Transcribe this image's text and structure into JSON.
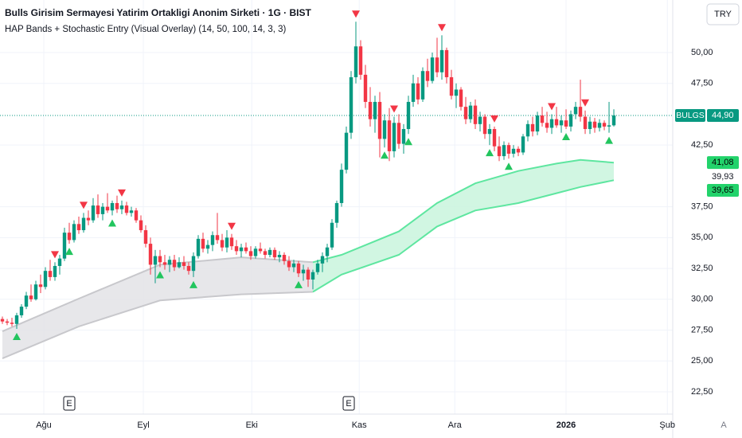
{
  "chart_data": {
    "type": "candlestick",
    "title": "Bulls Girisim Sermayesi Yatirim Ortakligi Anonim Sirketi · 1G · BIST",
    "subtitle": "HAP Bands + Stochastic Entry (Visual Overlay) (14, 50, 100, 14, 3, 3)",
    "currency": "TRY",
    "up_color": "#089981",
    "down_color": "#f23645",
    "ohlc": [
      [
        28.4,
        28.6,
        28.0,
        28.2
      ],
      [
        28.2,
        28.4,
        27.9,
        28.1
      ],
      [
        28.1,
        28.5,
        27.8,
        28.0
      ],
      [
        28.0,
        28.9,
        27.6,
        28.7
      ],
      [
        28.7,
        29.6,
        28.5,
        29.4
      ],
      [
        29.4,
        30.6,
        29.2,
        30.3
      ],
      [
        30.3,
        31.2,
        29.8,
        30.0
      ],
      [
        30.0,
        31.5,
        29.9,
        31.2
      ],
      [
        31.2,
        32.0,
        30.5,
        31.0
      ],
      [
        31.0,
        32.6,
        30.8,
        32.3
      ],
      [
        32.3,
        33.2,
        31.5,
        31.8
      ],
      [
        31.8,
        33.0,
        31.5,
        32.7
      ],
      [
        32.7,
        33.6,
        32.0,
        33.3
      ],
      [
        33.3,
        35.8,
        33.1,
        35.4
      ],
      [
        35.4,
        36.2,
        34.5,
        34.8
      ],
      [
        34.8,
        36.4,
        34.6,
        36.1
      ],
      [
        36.1,
        36.7,
        35.3,
        35.6
      ],
      [
        35.6,
        37.0,
        35.4,
        36.6
      ],
      [
        36.6,
        37.2,
        36.0,
        36.4
      ],
      [
        36.4,
        38.2,
        36.2,
        37.6
      ],
      [
        37.6,
        38.5,
        36.6,
        36.9
      ],
      [
        36.9,
        37.8,
        36.4,
        37.5
      ],
      [
        37.5,
        38.6,
        37.0,
        37.2
      ],
      [
        37.2,
        38.0,
        36.8,
        37.8
      ],
      [
        37.8,
        38.4,
        37.0,
        37.3
      ],
      [
        37.3,
        38.0,
        36.9,
        37.6
      ],
      [
        37.6,
        37.9,
        36.8,
        37.0
      ],
      [
        37.0,
        37.5,
        36.7,
        37.2
      ],
      [
        37.2,
        37.4,
        36.2,
        36.4
      ],
      [
        36.4,
        36.8,
        35.4,
        35.6
      ],
      [
        35.6,
        36.0,
        34.2,
        34.5
      ],
      [
        34.5,
        35.0,
        32.0,
        32.8
      ],
      [
        32.8,
        34.0,
        31.3,
        33.5
      ],
      [
        33.5,
        34.0,
        32.6,
        33.0
      ],
      [
        33.0,
        33.6,
        32.4,
        32.8
      ],
      [
        32.8,
        33.5,
        32.2,
        33.2
      ],
      [
        33.2,
        33.6,
        32.3,
        32.6
      ],
      [
        32.6,
        33.4,
        32.5,
        33.0
      ],
      [
        33.0,
        33.5,
        32.4,
        32.7
      ],
      [
        32.7,
        33.0,
        32.0,
        32.3
      ],
      [
        32.3,
        33.8,
        31.8,
        33.5
      ],
      [
        33.5,
        35.2,
        33.3,
        34.9
      ],
      [
        34.9,
        35.4,
        33.8,
        34.1
      ],
      [
        34.1,
        34.8,
        33.7,
        34.4
      ],
      [
        34.4,
        35.5,
        33.9,
        35.2
      ],
      [
        35.2,
        37.0,
        34.5,
        34.8
      ],
      [
        34.8,
        35.3,
        33.9,
        34.2
      ],
      [
        34.2,
        35.6,
        33.8,
        35.0
      ],
      [
        35.0,
        35.3,
        34.0,
        34.3
      ],
      [
        34.3,
        34.8,
        33.6,
        33.9
      ],
      [
        33.9,
        34.5,
        33.4,
        34.2
      ],
      [
        34.2,
        34.6,
        33.7,
        33.9
      ],
      [
        33.9,
        34.3,
        33.2,
        33.5
      ],
      [
        33.5,
        34.3,
        33.3,
        34.1
      ],
      [
        34.1,
        34.6,
        33.7,
        33.9
      ],
      [
        33.9,
        34.1,
        33.3,
        33.6
      ],
      [
        33.6,
        34.2,
        33.4,
        34.0
      ],
      [
        34.0,
        34.2,
        33.2,
        33.4
      ],
      [
        33.4,
        33.9,
        33.0,
        33.6
      ],
      [
        33.6,
        33.8,
        32.8,
        33.1
      ],
      [
        33.1,
        33.5,
        32.3,
        32.6
      ],
      [
        32.6,
        33.2,
        32.2,
        32.9
      ],
      [
        32.9,
        33.1,
        31.8,
        32.1
      ],
      [
        32.1,
        32.8,
        31.5,
        32.4
      ],
      [
        32.4,
        32.6,
        31.0,
        31.6
      ],
      [
        31.6,
        32.4,
        30.8,
        32.2
      ],
      [
        32.2,
        33.2,
        32.0,
        32.9
      ],
      [
        32.9,
        33.8,
        32.2,
        33.5
      ],
      [
        33.5,
        34.5,
        33.0,
        34.2
      ],
      [
        34.2,
        36.5,
        34.0,
        36.2
      ],
      [
        36.2,
        38.0,
        35.8,
        37.8
      ],
      [
        37.8,
        41.0,
        37.5,
        40.5
      ],
      [
        40.5,
        44.0,
        40.2,
        43.5
      ],
      [
        43.5,
        48.5,
        43.0,
        48.0
      ],
      [
        48.0,
        52.5,
        47.5,
        50.5
      ],
      [
        50.5,
        51.0,
        47.8,
        48.2
      ],
      [
        48.2,
        49.0,
        45.5,
        46.0
      ],
      [
        46.0,
        47.2,
        44.0,
        44.6
      ],
      [
        44.6,
        46.5,
        43.5,
        46.0
      ],
      [
        46.0,
        46.8,
        41.5,
        43.0
      ],
      [
        43.0,
        45.0,
        42.3,
        44.5
      ],
      [
        44.5,
        45.5,
        41.2,
        42.0
      ],
      [
        42.0,
        44.8,
        41.5,
        44.3
      ],
      [
        44.3,
        45.0,
        42.2,
        42.6
      ],
      [
        42.6,
        44.2,
        41.8,
        43.8
      ],
      [
        43.8,
        46.5,
        43.4,
        46.0
      ],
      [
        46.0,
        48.2,
        45.6,
        47.5
      ],
      [
        47.5,
        48.0,
        45.8,
        46.2
      ],
      [
        46.2,
        48.8,
        46.0,
        48.5
      ],
      [
        48.5,
        49.5,
        47.2,
        47.7
      ],
      [
        47.7,
        50.0,
        47.5,
        49.6
      ],
      [
        49.6,
        51.2,
        48.0,
        48.4
      ],
      [
        48.4,
        51.4,
        47.8,
        50.2
      ],
      [
        50.2,
        50.4,
        47.5,
        48.0
      ],
      [
        48.0,
        48.6,
        46.2,
        46.5
      ],
      [
        46.5,
        47.5,
        45.5,
        47.0
      ],
      [
        47.0,
        47.2,
        45.3,
        45.6
      ],
      [
        45.6,
        46.4,
        44.2,
        44.6
      ],
      [
        44.6,
        46.0,
        44.3,
        45.7
      ],
      [
        45.7,
        46.2,
        43.8,
        44.2
      ],
      [
        44.2,
        45.2,
        43.6,
        44.8
      ],
      [
        44.8,
        45.0,
        43.0,
        43.4
      ],
      [
        43.4,
        44.2,
        42.5,
        43.8
      ],
      [
        43.8,
        44.0,
        42.0,
        42.4
      ],
      [
        42.4,
        43.2,
        41.2,
        41.6
      ],
      [
        41.6,
        42.8,
        41.3,
        42.5
      ],
      [
        42.5,
        42.7,
        41.4,
        41.8
      ],
      [
        41.8,
        42.5,
        41.5,
        42.2
      ],
      [
        42.2,
        42.4,
        41.6,
        41.9
      ],
      [
        41.9,
        43.4,
        41.7,
        43.2
      ],
      [
        43.2,
        44.5,
        42.8,
        44.2
      ],
      [
        44.2,
        44.8,
        43.2,
        43.6
      ],
      [
        43.6,
        45.2,
        43.3,
        44.9
      ],
      [
        44.9,
        45.6,
        44.0,
        44.3
      ],
      [
        44.3,
        45.2,
        43.5,
        43.9
      ],
      [
        43.9,
        45.0,
        43.4,
        44.6
      ],
      [
        44.6,
        45.6,
        43.9,
        44.1
      ],
      [
        44.1,
        44.9,
        43.5,
        44.5
      ],
      [
        44.5,
        45.4,
        43.8,
        44.0
      ],
      [
        44.0,
        45.3,
        43.6,
        45.0
      ],
      [
        45.0,
        46.0,
        44.6,
        45.6
      ],
      [
        45.6,
        47.8,
        44.4,
        44.8
      ],
      [
        44.8,
        45.3,
        43.4,
        43.8
      ],
      [
        43.8,
        44.8,
        43.4,
        44.4
      ],
      [
        44.4,
        44.7,
        43.5,
        43.9
      ],
      [
        43.9,
        44.6,
        43.6,
        44.3
      ],
      [
        44.3,
        44.5,
        43.7,
        44.0
      ],
      [
        44.0,
        46.0,
        43.5,
        44.1
      ],
      [
        44.1,
        45.4,
        44.0,
        44.9
      ]
    ],
    "bands": [
      {
        "color": "#c8c8cc",
        "fill": "#e3e3e6",
        "x": [
          0,
          16,
          33,
          50,
          65
        ],
        "upper": [
          27.4,
          30.05,
          32.8,
          33.4,
          33.0
        ],
        "lower": [
          25.2,
          27.8,
          29.9,
          30.4,
          30.6
        ]
      },
      {
        "color": "#5ee6a0",
        "fill": "#c9f5dd",
        "x": [
          65,
          71,
          83,
          91,
          99,
          108,
          116,
          121,
          128
        ],
        "upper": [
          33.0,
          33.6,
          35.5,
          37.8,
          39.4,
          40.4,
          41.0,
          41.3,
          41.08
        ],
        "lower": [
          30.6,
          32.0,
          33.6,
          35.9,
          37.2,
          37.8,
          38.6,
          39.1,
          39.65
        ]
      }
    ],
    "buy_signals": [
      3,
      14,
      23,
      33,
      40,
      62,
      80,
      85,
      102,
      106,
      118,
      127
    ],
    "sell_signals": [
      11,
      17,
      25,
      48,
      74,
      82,
      92,
      103,
      115,
      122
    ],
    "signal_colors": {
      "buy": "#22c55e",
      "sell": "#f23645"
    },
    "earnings_events": [
      {
        "x": 14,
        "label": "E"
      },
      {
        "x": 72.5,
        "label": "E"
      }
    ],
    "price_labels": [
      {
        "name": "BULGS",
        "value": 44.9,
        "label": "44,90",
        "color": "#089981",
        "line": true
      },
      {
        "value": 41.08,
        "label": "41,08",
        "color": "#22d36b"
      },
      {
        "value": 39.93,
        "label": "39,93"
      },
      {
        "value": 39.65,
        "label": "39,65",
        "color": "#22d36b"
      }
    ],
    "xlim": [
      -0.5,
      140.33
    ],
    "ylim": [
      20.69,
      54.26
    ],
    "xticks": [
      {
        "value": 8.67,
        "label": "Ağu"
      },
      {
        "value": 29.5,
        "label": "Eyl"
      },
      {
        "value": 52.2,
        "label": "Eki"
      },
      {
        "value": 74.7,
        "label": "Kas"
      },
      {
        "value": 94.7,
        "label": "Ara"
      },
      {
        "value": 118,
        "label": "2026"
      },
      {
        "value": 139.2,
        "label": "Şub"
      }
    ],
    "yticks": [
      {
        "value": 50,
        "label": "50,00"
      },
      {
        "value": 47.5,
        "label": "47,50"
      },
      {
        "value": 42.5,
        "label": "42,50"
      },
      {
        "value": 37.5,
        "label": "37,50"
      },
      {
        "value": 35,
        "label": "35,00"
      },
      {
        "value": 32.5,
        "label": "32,50"
      },
      {
        "value": 30,
        "label": "30,00"
      },
      {
        "value": 27.5,
        "label": "27,50"
      },
      {
        "value": 25,
        "label": "25,00"
      },
      {
        "value": 22.5,
        "label": "22,50"
      }
    ],
    "grid": true,
    "scale_mode": "A"
  }
}
